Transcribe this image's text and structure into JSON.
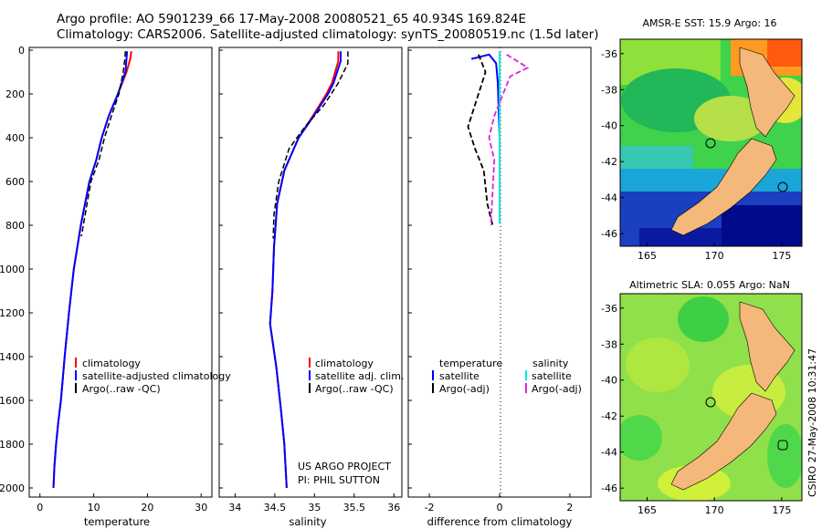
{
  "header": {
    "line1": "Argo profile: AO 5901239_66 17-May-2008 20080521_65 40.934S 169.824E",
    "line2": "Climatology: CARS2006. Satellite-adjusted climatology: synTS_20080519.nc (1.5d later)"
  },
  "colors": {
    "climatology": "#ff0000",
    "satellite": "#0000ff",
    "argo": "#000000",
    "sal_satellite": "#00e5e5",
    "sal_argo": "#e020e0",
    "land": "#f4b87a"
  },
  "panels": {
    "temperature": {
      "xlabel": "temperature",
      "xticks": [
        "0",
        "10",
        "20",
        "30"
      ],
      "legend": [
        "climatology",
        "satellite-adjusted climatology",
        "Argo(..raw -QC)"
      ]
    },
    "salinity": {
      "xlabel": "salinity",
      "xticks": [
        "34",
        "34.5",
        "35",
        "35.5",
        "36"
      ],
      "legend": [
        "climatology",
        "satellite adj. clim.",
        "Argo(..raw -QC)"
      ],
      "note1": "US ARGO PROJECT",
      "note2": "PI: PHIL SUTTON"
    },
    "difference": {
      "xlabel": "difference from climatology",
      "xticks": [
        "-2",
        "0",
        "2"
      ],
      "head_temp": "temperature",
      "head_sal": "salinity",
      "legend_temp": [
        "satellite",
        "Argo(-adj)"
      ],
      "legend_sal": [
        "satellite",
        "Argo(-adj)"
      ]
    },
    "depth_ticks": [
      "0",
      "200",
      "400",
      "600",
      "800",
      "1000",
      "1200",
      "1400",
      "1600",
      "1800",
      "2000"
    ]
  },
  "maps": {
    "sst_title": "AMSR-E SST: 15.9 Argo: 16",
    "sla_title": "Altimetric SLA: 0.055 Argo: NaN",
    "lon_ticks": [
      "165",
      "170",
      "175"
    ],
    "lat_ticks": [
      "-36",
      "-38",
      "-40",
      "-42",
      "-44",
      "-46"
    ]
  },
  "side_label": "CSIRO 27-May-2008 10:31:47",
  "chart_data": [
    {
      "type": "line",
      "xlabel": "temperature",
      "ylabel": "",
      "xlim": [
        -2,
        32
      ],
      "ylim": [
        2050,
        0
      ],
      "series": [
        {
          "name": "climatology",
          "x": [
            17,
            16.8,
            16.1,
            14.5,
            12.8,
            11.5,
            10.5,
            9.2,
            7.6,
            6.3,
            5.4,
            4.6,
            3.9,
            3.4,
            3.0,
            2.7,
            2.5
          ],
          "y": [
            5,
            40,
            100,
            200,
            300,
            400,
            500,
            600,
            800,
            1000,
            1200,
            1400,
            1600,
            1700,
            1800,
            1900,
            2000
          ]
        },
        {
          "name": "satellite-adjusted climatology",
          "x": [
            16.2,
            16.1,
            15.9,
            14.5,
            12.8,
            11.5,
            10.5,
            9.2,
            7.6,
            6.3,
            5.4,
            4.6,
            3.9,
            3.4,
            3.0,
            2.7,
            2.5
          ],
          "y": [
            5,
            40,
            100,
            200,
            300,
            400,
            500,
            600,
            800,
            1000,
            1200,
            1400,
            1600,
            1700,
            1800,
            1900,
            2000
          ]
        },
        {
          "name": "Argo(..raw -QC)",
          "x": [
            15.9,
            15.8,
            15.5,
            14.7,
            13.3,
            12.0,
            11.0,
            9.5,
            7.7
          ],
          "y": [
            5,
            40,
            100,
            200,
            300,
            400,
            500,
            600,
            850
          ]
        }
      ]
    },
    {
      "type": "line",
      "xlabel": "salinity",
      "ylabel": "",
      "xlim": [
        33.8,
        36.1
      ],
      "ylim": [
        2050,
        0
      ],
      "series": [
        {
          "name": "climatology",
          "x": [
            35.3,
            35.3,
            35.22,
            35.15,
            34.98,
            34.8,
            34.62,
            34.53,
            34.49,
            34.47,
            34.44,
            34.52,
            34.58,
            34.62,
            34.65
          ],
          "y": [
            5,
            50,
            150,
            200,
            300,
            400,
            550,
            700,
            900,
            1100,
            1250,
            1450,
            1650,
            1800,
            2000
          ]
        },
        {
          "name": "satellite adj. clim.",
          "x": [
            35.33,
            35.33,
            35.24,
            35.17,
            34.99,
            34.8,
            34.62,
            34.53,
            34.49,
            34.47,
            34.44,
            34.52,
            34.58,
            34.62,
            34.65
          ],
          "y": [
            5,
            50,
            150,
            200,
            300,
            400,
            550,
            700,
            900,
            1100,
            1250,
            1450,
            1650,
            1800,
            2000
          ]
        },
        {
          "name": "Argo(..raw -QC)",
          "x": [
            35.42,
            35.42,
            35.3,
            35.12,
            34.88,
            34.68,
            34.55,
            34.49,
            34.48
          ],
          "y": [
            5,
            60,
            150,
            250,
            350,
            450,
            600,
            750,
            860
          ]
        }
      ]
    },
    {
      "type": "line",
      "xlabel": "difference from climatology",
      "ylabel": "",
      "xlim": [
        -2.6,
        2.6
      ],
      "ylim": [
        2050,
        0
      ],
      "series": [
        {
          "name": "satellite",
          "x": [
            -0.8,
            -0.3,
            -0.1,
            -0.05,
            0,
            0
          ],
          "y": [
            40,
            20,
            60,
            150,
            400,
            790
          ]
        },
        {
          "name": "Argo(-adj)",
          "x": [
            -0.6,
            -0.4,
            -0.6,
            -0.9,
            -0.7,
            -0.45,
            -0.35,
            -0.2
          ],
          "y": [
            20,
            100,
            200,
            350,
            450,
            550,
            700,
            800
          ]
        },
        {
          "name": "satellite",
          "x": [
            0,
            0,
            0,
            0
          ],
          "y": [
            5,
            200,
            500,
            790
          ]
        },
        {
          "name": "Argo(-adj)",
          "x": [
            0.2,
            0.8,
            0.3,
            0.1,
            -0.15,
            -0.3,
            -0.15,
            -0.2,
            -0.25
          ],
          "y": [
            20,
            80,
            120,
            200,
            300,
            400,
            500,
            650,
            800
          ]
        }
      ]
    }
  ]
}
